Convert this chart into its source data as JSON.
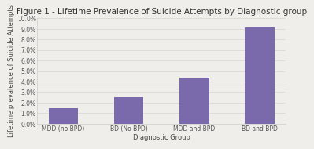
{
  "title": "Figure 1 - Lifetime Prevalence of Suicide Attempts by Diagnostic group",
  "categories": [
    "MDD (no BPD)",
    "BD (No BPD)",
    "MDD and BPD",
    "BD and BPD"
  ],
  "values": [
    0.015,
    0.025,
    0.044,
    0.091
  ],
  "bar_color": "#7b6aab",
  "xlabel": "Diagnostic Group",
  "ylabel": "Lifetime prevalence of Suicide Attempts",
  "ylim": [
    0,
    0.1
  ],
  "yticks": [
    0.0,
    0.01,
    0.02,
    0.03,
    0.04,
    0.05,
    0.06,
    0.07,
    0.08,
    0.09,
    0.1
  ],
  "ytick_labels": [
    "0.0%",
    "1.0%",
    "2.0%",
    "3.0%",
    "4.0%",
    "5.0%",
    "6.0%",
    "7.0%",
    "8.0%",
    "9.0%",
    "10.0%"
  ],
  "background_color": "#f0eeeb",
  "title_fontsize": 7.5,
  "axis_label_fontsize": 6,
  "tick_fontsize": 5.5,
  "bar_width": 0.45
}
